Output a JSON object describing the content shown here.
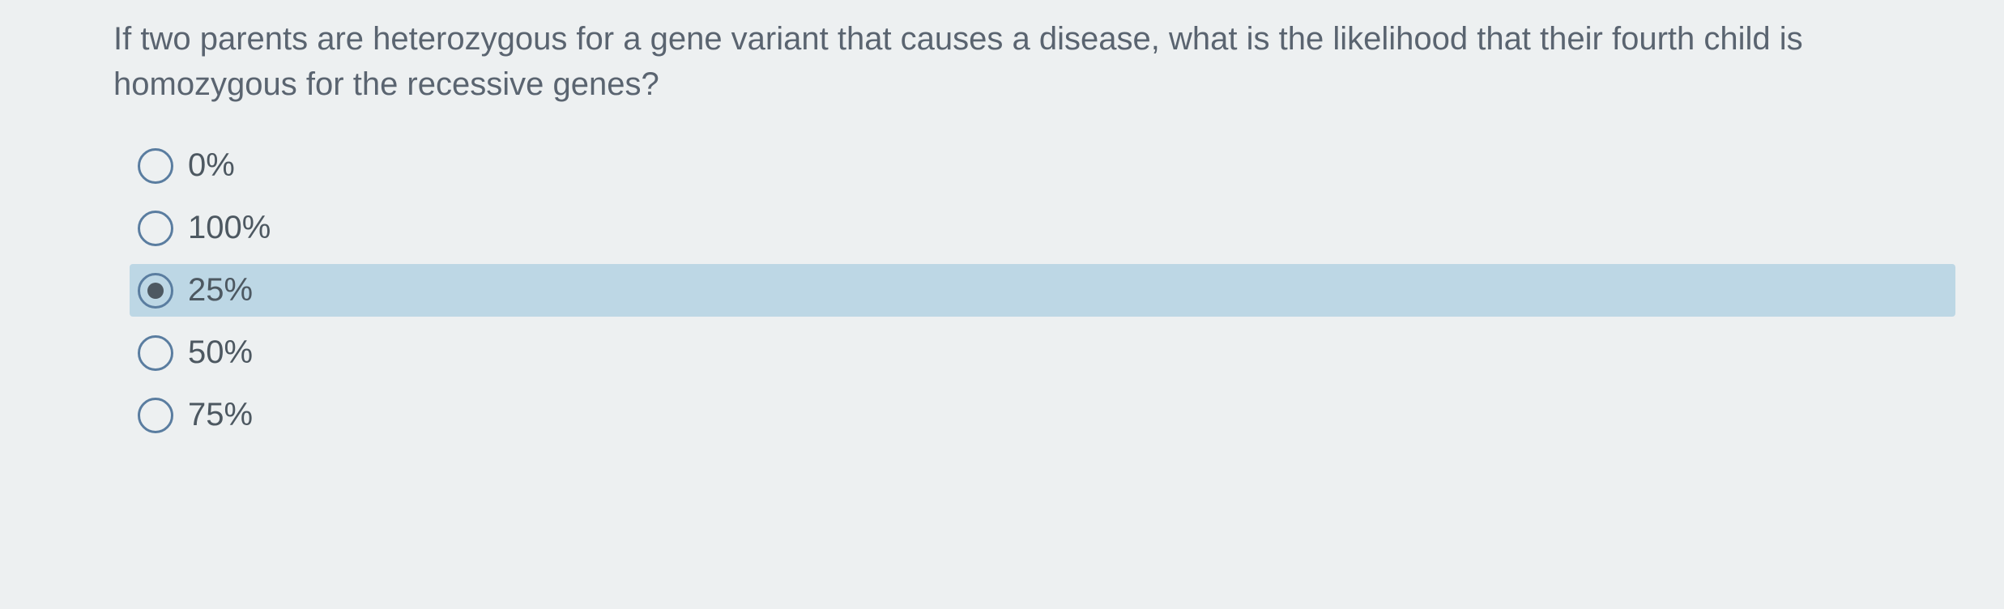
{
  "question": {
    "text": "If two parents are heterozygous for a gene variant that causes a disease, what is the likelihood that their fourth child is homozygous for the recessive genes?",
    "text_color": "#5a6470",
    "font_size": 40
  },
  "options": [
    {
      "label": "0%",
      "selected": false
    },
    {
      "label": "100%",
      "selected": false
    },
    {
      "label": "25%",
      "selected": true
    },
    {
      "label": "50%",
      "selected": false
    },
    {
      "label": "75%",
      "selected": false
    }
  ],
  "styling": {
    "background_color": "#edf0f1",
    "selected_bg_color": "#bdd7e5",
    "radio_border_color": "#5a7da0",
    "radio_fill_color": "#4d5861",
    "option_text_color": "#4d5861",
    "option_font_size": 40
  }
}
